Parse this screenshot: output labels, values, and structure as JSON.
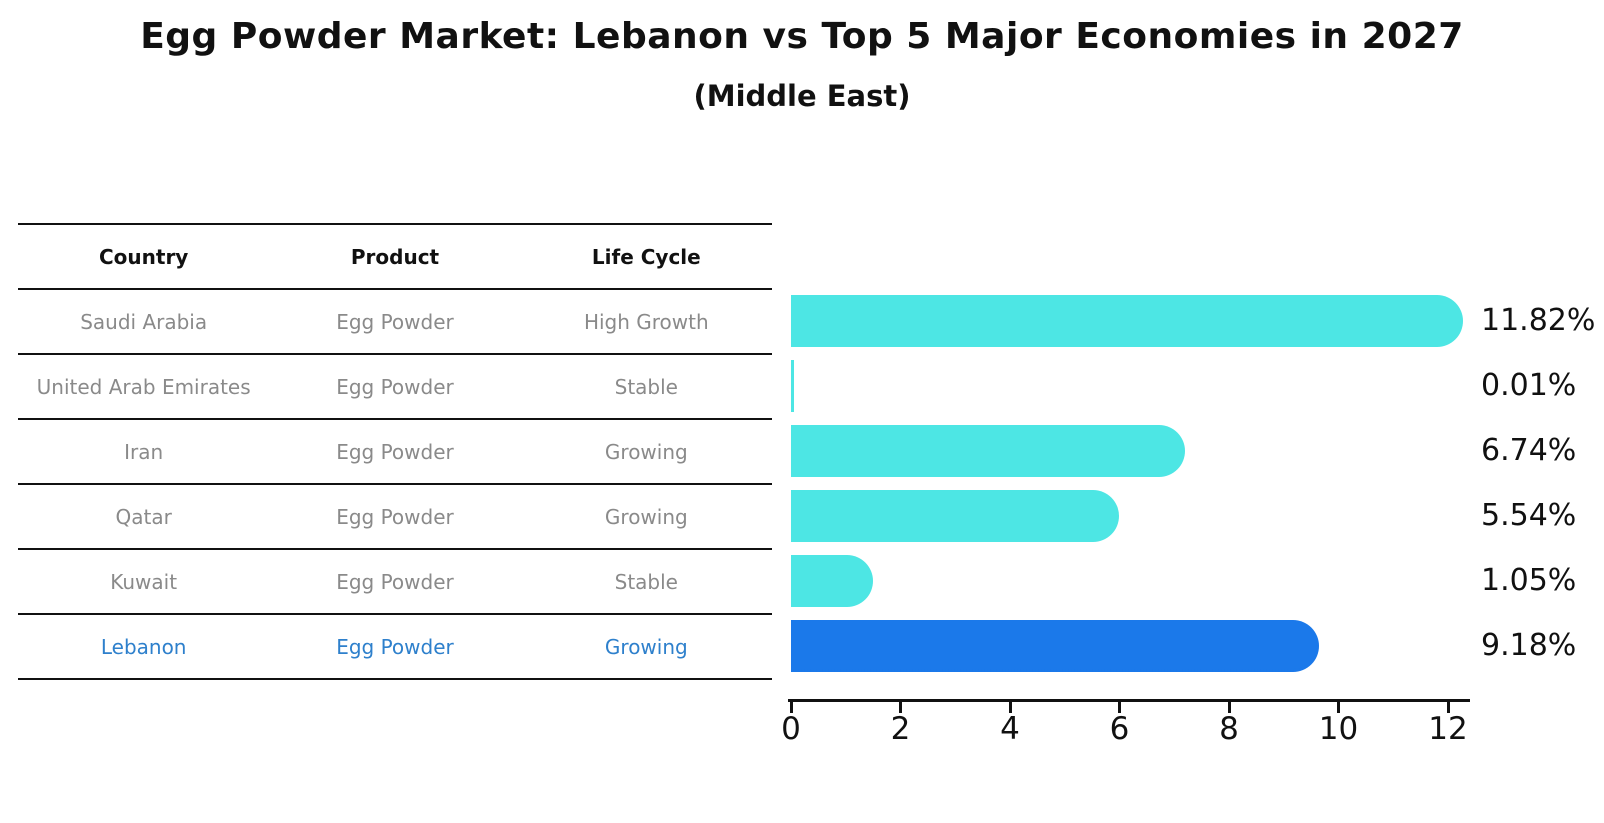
{
  "title": "Egg Powder Market: Lebanon vs Top 5 Major Economies in 2027",
  "subtitle": "(Middle East)",
  "table": {
    "headers": [
      "Country",
      "Product",
      "Life Cycle"
    ],
    "rows": [
      [
        "Saudi Arabia",
        "Egg Powder",
        "High Growth"
      ],
      [
        "United Arab Emirates",
        "Egg Powder",
        "Stable"
      ],
      [
        "Iran",
        "Egg Powder",
        "Growing"
      ],
      [
        "Qatar",
        "Egg Powder",
        "Growing"
      ],
      [
        "Kuwait",
        "Egg Powder",
        "Stable"
      ],
      [
        "Lebanon",
        "Egg Powder",
        "Growing"
      ]
    ],
    "highlight_row_index": 5
  },
  "chart_data": {
    "type": "bar",
    "orientation": "horizontal",
    "title": "Egg Powder Market: Lebanon vs Top 5 Major Economies in 2027",
    "subtitle": "(Middle East)",
    "categories": [
      "Saudi Arabia",
      "United Arab Emirates",
      "Iran",
      "Qatar",
      "Kuwait",
      "Lebanon"
    ],
    "values": [
      11.82,
      0.01,
      6.74,
      5.54,
      1.05,
      9.18
    ],
    "value_labels": [
      "11.82%",
      "0.01%",
      "6.74%",
      "5.54%",
      "1.05%",
      "9.18%"
    ],
    "x_ticks": [
      0,
      2,
      4,
      6,
      8,
      10,
      12
    ],
    "xlim": [
      0,
      12.4
    ],
    "grid": false,
    "legend": "none",
    "highlight_index": 5,
    "highlight_style": "dotted-border"
  },
  "colors": {
    "bar": "#4de6e4",
    "highlight_bar": "#1b79ea",
    "highlight_text": "#2e80cc",
    "row_text": "#8a8a8a",
    "header_text": "#111111",
    "axis": "#111111"
  }
}
